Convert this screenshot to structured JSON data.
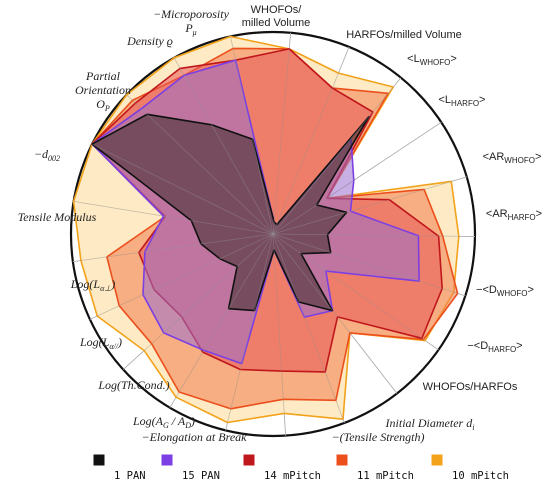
{
  "chart_data": {
    "type": "radar",
    "title": "",
    "axes": [
      {
        "label": "WHOFOs/ milled Volume",
        "lines": [
          "WHOFOs/",
          "milled Volume"
        ],
        "italic": false
      },
      {
        "label": "HARFOs/milled Volume",
        "lines": [
          "HARFOs/milled Volume"
        ],
        "italic": false
      },
      {
        "label": "<L WHOFO>",
        "lines": [
          "<L",
          "WHOFO",
          ">"
        ],
        "italic": false
      },
      {
        "label": "<L HARFO>",
        "lines": [
          "<L",
          "HARFO",
          ">"
        ],
        "italic": false
      },
      {
        "label": "<AR WHOFO>",
        "lines": [
          "<AR",
          "WHOFO",
          ">"
        ],
        "italic": false
      },
      {
        "label": "<AR HARFO>",
        "lines": [
          "<AR",
          "HARFO",
          ">"
        ],
        "italic": false
      },
      {
        "label": "−<D WHOFO>",
        "lines": [
          "−<D",
          "WHOFO",
          ">"
        ],
        "italic": false
      },
      {
        "label": "−<D HARFO>",
        "lines": [
          "−<D",
          "HARFO",
          ">"
        ],
        "italic": false
      },
      {
        "label": "WHOFOs/HARFOs",
        "lines": [
          "WHOFOs/HARFOs"
        ],
        "italic": false
      },
      {
        "label": "Initial Diameter di",
        "lines": [
          "Initial Diameter d",
          "i"
        ],
        "italic": true
      },
      {
        "label": "−(Tensile Strength)",
        "lines": [
          "−(Tensile Strength)"
        ],
        "italic": true
      },
      {
        "label": "−Elongation at Break",
        "lines": [
          "−Elongation at Break"
        ],
        "italic": true
      },
      {
        "label": "Log(AG / AD)",
        "lines": [
          "Log(A",
          "G",
          " / A",
          "D",
          ")"
        ],
        "italic": true
      },
      {
        "label": "Log(Th.Cond.)",
        "lines": [
          "Log(Th.Cond.)"
        ],
        "italic": true
      },
      {
        "label": "Log(Lα//)",
        "lines": [
          "Log(L",
          "α//",
          ")"
        ],
        "italic": true
      },
      {
        "label": "Log(Lα⊥)",
        "lines": [
          "Log(L",
          "α⊥",
          ")"
        ],
        "italic": true
      },
      {
        "label": "Tensile Modulus",
        "lines": [
          "Tensile Modulus"
        ],
        "italic": true
      },
      {
        "label": "−d002",
        "lines": [
          "−d",
          "002"
        ],
        "italic": true
      },
      {
        "label": "Partial Orientation OP",
        "lines": [
          "Partial",
          "Orientation",
          "O",
          "P"
        ],
        "italic": true
      },
      {
        "label": "Density ρ",
        "lines": [
          "Density ϱ"
        ],
        "italic": true
      },
      {
        "label": "−Microporosity Pμ",
        "lines": [
          "−Microporosity",
          "P",
          "μ"
        ],
        "italic": true
      }
    ],
    "rmax": 1.0,
    "grid": true,
    "legend_position": "bottom",
    "series": [
      {
        "name": "1 PAN",
        "values": [
          0.06,
          0.05,
          0.75,
          0.26,
          0.38,
          0.27,
          0.3,
          0.17,
          0.48,
          0.36,
          0.08,
          0.39,
          0.43,
          0.24,
          0.29,
          0.36,
          0.41,
          1.0,
          0.86,
          0.62,
          0.48
        ]
      },
      {
        "name": "15 PAN",
        "values": [
          0.06,
          0.05,
          0.61,
          0.48,
          0.4,
          0.72,
          0.76,
          0.32,
          0.48,
          0.44,
          0.08,
          0.66,
          0.67,
          0.73,
          0.71,
          0.64,
          0.55,
          1.0,
          0.9,
          0.9,
          0.88
        ]
      },
      {
        "name": "14 mPitch",
        "values": [
          0.92,
          0.78,
          0.78,
          0.32,
          0.6,
          0.82,
          0.88,
          0.9,
          0.52,
          0.73,
          0.68,
          0.69,
          0.68,
          0.61,
          0.65,
          0.67,
          0.54,
          1.0,
          0.94,
          0.94,
          0.88
        ]
      },
      {
        "name": "11 mPitch",
        "values": [
          0.92,
          0.78,
          0.9,
          0.32,
          0.78,
          0.84,
          0.96,
          0.91,
          0.62,
          0.88,
          0.82,
          0.89,
          0.91,
          0.81,
          0.84,
          0.83,
          0.54,
          1.0,
          0.96,
          0.9,
          0.94
        ]
      },
      {
        "name": "10 mPitch",
        "values": [
          0.92,
          0.86,
          0.94,
          0.32,
          0.92,
          0.92,
          0.94,
          0.92,
          0.62,
          0.98,
          0.89,
          0.96,
          0.94,
          0.86,
          0.96,
          0.96,
          1.0,
          1.0,
          1.0,
          1.0,
          1.0
        ]
      }
    ],
    "colors": {
      "1 PAN": "#111111",
      "15 PAN": "#7b3fe4",
      "14 mPitch": "#c0171c",
      "11 mPitch": "#ec4f1c",
      "10 mPitch": "#f2a21b"
    },
    "fills": {
      "1 PAN": "#3a2a2a",
      "15 PAN": "#9a6fd0",
      "14 mPitch": "#e85555",
      "11 mPitch": "#f07b4a",
      "10 mPitch": "#fde0a6"
    }
  }
}
